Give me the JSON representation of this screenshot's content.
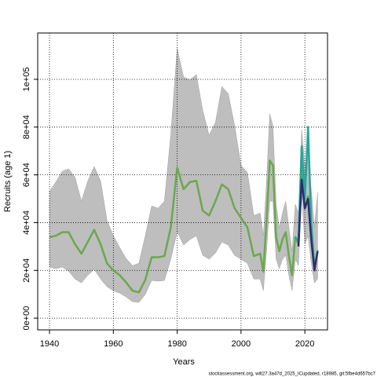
{
  "chart_data": {
    "type": "line",
    "xlabel": "Years",
    "ylabel": "Recruits (age 1)",
    "footnote": "stockassessment.org, wilt27.3a47d_2025_ICupdated, r18985, git:5fbe4d657bc7",
    "x": [
      1940,
      1942,
      1944,
      1946,
      1948,
      1950,
      1952,
      1954,
      1956,
      1958,
      1960,
      1962,
      1964,
      1966,
      1968,
      1970,
      1972,
      1974,
      1976,
      1978,
      1980,
      1982,
      1984,
      1986,
      1988,
      1990,
      1992,
      1994,
      1996,
      1998,
      2000,
      2002,
      2004,
      2006,
      2007,
      2008,
      2009,
      2010,
      2011,
      2012,
      2013,
      2014,
      2015,
      2016,
      2017,
      2018,
      2019,
      2020,
      2021,
      2022,
      2023,
      2024
    ],
    "band": {
      "color": "#bebebe",
      "upper": [
        53000,
        57000,
        61500,
        62500,
        59000,
        49000,
        57500,
        63500,
        57500,
        41000,
        34500,
        29600,
        25000,
        22000,
        23000,
        34500,
        47000,
        46000,
        49000,
        77000,
        113000,
        101000,
        99700,
        102000,
        87000,
        76600,
        82000,
        97000,
        94000,
        80600,
        64000,
        61000,
        43000,
        44000,
        34500,
        57500,
        85500,
        80600,
        47700,
        37800,
        44000,
        49000,
        38000,
        28000,
        47700,
        44000,
        79000,
        64000,
        69000,
        54000,
        38000,
        52600
      ],
      "lower": [
        21400,
        20700,
        21400,
        19700,
        16400,
        14800,
        18000,
        20400,
        16400,
        13200,
        11500,
        10500,
        8900,
        6900,
        6600,
        9900,
        15800,
        15500,
        15800,
        24700,
        36200,
        30600,
        32900,
        34500,
        26300,
        24700,
        27300,
        31900,
        30600,
        26300,
        24700,
        23000,
        16400,
        16400,
        11500,
        28000,
        49000,
        49000,
        24700,
        20700,
        24700,
        26300,
        18000,
        11500,
        24700,
        22000,
        52600,
        31000,
        34500,
        23000,
        14800,
        16400
      ]
    },
    "series": [
      {
        "color": "#6aa84f",
        "values": [
          33900,
          34500,
          36000,
          36000,
          31000,
          27000,
          32000,
          37000,
          31000,
          23000,
          20000,
          18000,
          15000,
          11500,
          10800,
          16000,
          25500,
          25500,
          26000,
          38000,
          63000,
          54000,
          57000,
          57500,
          45000,
          43000,
          49000,
          56000,
          54000,
          46000,
          42000,
          38000,
          26000,
          27000,
          19500,
          41000,
          66000,
          64000,
          34000,
          28000,
          33000,
          36000,
          26000,
          18000,
          34000,
          31000,
          64000,
          46000,
          51000,
          36000,
          21000,
          28500
        ]
      },
      {
        "color": "#26a69a",
        "values": [
          null,
          null,
          null,
          null,
          null,
          null,
          null,
          null,
          null,
          null,
          null,
          null,
          null,
          null,
          null,
          null,
          null,
          null,
          null,
          null,
          null,
          null,
          null,
          null,
          null,
          null,
          null,
          null,
          null,
          null,
          null,
          null,
          null,
          null,
          null,
          null,
          null,
          null,
          null,
          null,
          null,
          null,
          null,
          null,
          34000,
          32000,
          72000,
          50000,
          80000,
          40000,
          21000,
          null
        ]
      },
      {
        "color": "#2b2d6e",
        "values": [
          null,
          null,
          null,
          null,
          null,
          null,
          null,
          null,
          null,
          null,
          null,
          null,
          null,
          null,
          null,
          null,
          null,
          null,
          null,
          null,
          null,
          null,
          null,
          null,
          null,
          null,
          null,
          null,
          null,
          null,
          null,
          null,
          null,
          null,
          null,
          null,
          null,
          null,
          null,
          null,
          null,
          null,
          null,
          null,
          null,
          30000,
          58000,
          46000,
          50000,
          33000,
          20000,
          28000
        ]
      }
    ],
    "xlim": [
      1936.3,
      2027.1
    ],
    "ylim": [
      -4900,
      119400
    ],
    "xticks": [
      1940,
      1960,
      1980,
      2000,
      2020
    ],
    "yticks": [
      {
        "value": 0,
        "label": "0e+00"
      },
      {
        "value": 20000,
        "label": "2e+04"
      },
      {
        "value": 40000,
        "label": "4e+04"
      },
      {
        "value": 60000,
        "label": "6e+04"
      },
      {
        "value": 80000,
        "label": "8e+04"
      },
      {
        "value": 100000,
        "label": "1e+05"
      }
    ],
    "grid": true
  }
}
